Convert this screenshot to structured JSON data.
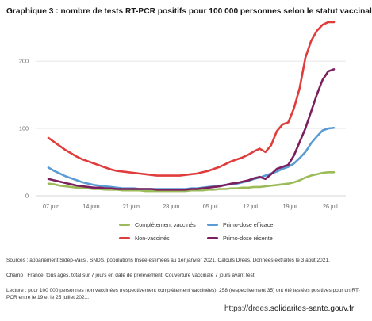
{
  "title": "Graphique 3 : nombre de tests RT-PCR positifs pour 100 000 personnes selon le statut vaccinal",
  "chart_data": {
    "type": "line",
    "title": "Graphique 3 : nombre de tests RT-PCR positifs pour 100 000 personnes selon le statut vaccinal",
    "xlabel": "",
    "ylabel": "",
    "x_ticks": [
      "07 juin",
      "14 juin",
      "21 juin",
      "28 juin",
      "05 juil.",
      "12 juil.",
      "19 juil.",
      "26 juil."
    ],
    "y_ticks": [
      0,
      100,
      200
    ],
    "ylim": [
      0,
      265
    ],
    "x_start_day": 0,
    "x_end_day": 50,
    "grid": "horizontal",
    "legend_position": "bottom",
    "series": [
      {
        "name": "Complètement vaccinés",
        "color": "#9bbb59",
        "values": [
          18,
          17,
          15,
          14,
          13,
          12,
          11,
          11,
          10,
          10,
          9,
          9,
          9,
          8,
          8,
          8,
          8,
          7,
          7,
          7,
          7,
          7,
          7,
          7,
          7,
          8,
          8,
          8,
          9,
          9,
          10,
          10,
          11,
          11,
          12,
          12,
          13,
          13,
          14,
          15,
          16,
          17,
          18,
          20,
          23,
          27,
          30,
          32,
          34,
          35,
          35
        ]
      },
      {
        "name": "Primo-dose efficace",
        "color": "#5b9bd5",
        "values": [
          42,
          37,
          33,
          29,
          26,
          23,
          20,
          18,
          16,
          15,
          14,
          13,
          12,
          11,
          11,
          11,
          10,
          10,
          10,
          10,
          10,
          10,
          10,
          10,
          10,
          11,
          11,
          12,
          13,
          14,
          15,
          16,
          17,
          18,
          20,
          22,
          25,
          27,
          30,
          33,
          36,
          40,
          43,
          48,
          56,
          65,
          78,
          88,
          97,
          100,
          101
        ]
      },
      {
        "name": "Non-vaccinés",
        "color": "#e03c3c",
        "values": [
          86,
          80,
          74,
          68,
          63,
          58,
          54,
          51,
          48,
          45,
          42,
          39,
          37,
          36,
          35,
          34,
          33,
          32,
          31,
          30,
          30,
          30,
          30,
          30,
          31,
          32,
          33,
          35,
          37,
          40,
          43,
          47,
          51,
          54,
          57,
          61,
          66,
          70,
          65,
          75,
          96,
          106,
          109,
          130,
          160,
          205,
          230,
          245,
          254,
          258,
          258
        ]
      },
      {
        "name": "Primo-dose récente",
        "color": "#7b1f5e",
        "values": [
          25,
          23,
          21,
          19,
          17,
          15,
          14,
          13,
          12,
          12,
          11,
          11,
          10,
          10,
          10,
          10,
          10,
          10,
          10,
          9,
          9,
          9,
          9,
          9,
          9,
          10,
          10,
          11,
          12,
          13,
          14,
          16,
          18,
          19,
          21,
          23,
          26,
          28,
          25,
          32,
          40,
          43,
          46,
          60,
          80,
          100,
          125,
          150,
          172,
          185,
          188
        ]
      }
    ]
  },
  "notes": [
    "Sources : appariement Sidep-Vacsi, SNDS, populations Insee estimées au 1er janvier 2021. Calculs Drees. Données extraites le 3 août 2021.",
    "Champ : France, tous âges, total sur 7 jours en date de prélèvement. Couverture vaccinale 7 jours avant test.",
    "Lecture : pour 100 000 personnes non vaccinées (respectivement complètement vaccinées), 258 (respectivement 35) ont été testées positives pour un RT-PCR entre le 19 et le 25 juillet 2021."
  ],
  "url": {
    "prefix": "https://drees.",
    "domain": "solidarites-sante.gouv.fr"
  }
}
